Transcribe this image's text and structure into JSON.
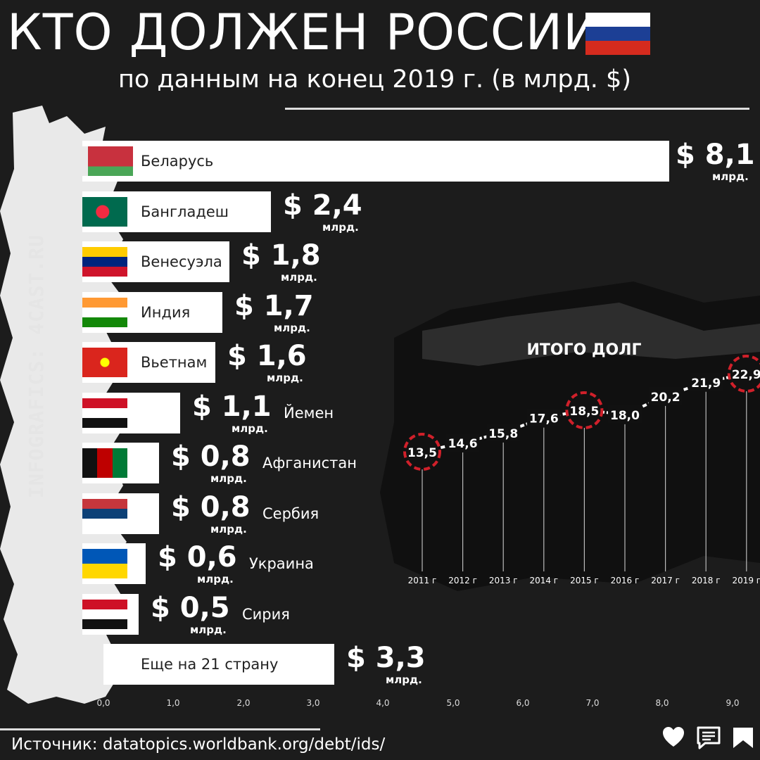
{
  "header": {
    "title": "КТО ДОЛЖЕН РОССИИ",
    "subtitle": "по данным на конец 2019 г. (в млрд. $)"
  },
  "side_text": "INFOGRAFICS: 4CAST.RU",
  "source": "Источник: datatopics.worldbank.org/debt/ids/",
  "colors": {
    "background": "#1c1c1c",
    "bar": "#ffffff",
    "marker_ring": "#d0202a",
    "line": "#ffffff"
  },
  "icons": [
    "heart-icon",
    "comment-icon",
    "bookmark-icon"
  ],
  "chart_data": [
    {
      "type": "bar",
      "orientation": "horizontal",
      "categories": [
        "Беларусь",
        "Бангладеш",
        "Венесуэла",
        "Индия",
        "Вьетнам",
        "Йемен",
        "Афганистан",
        "Сербия",
        "Украина",
        "Сирия",
        "Еще на 21 страну"
      ],
      "values": [
        8.1,
        2.4,
        1.8,
        1.7,
        1.6,
        1.1,
        0.8,
        0.8,
        0.6,
        0.5,
        3.3
      ],
      "value_labels": [
        "$ 8,1",
        "$ 2,4",
        "$ 1,8",
        "$ 1,7",
        "$ 1,6",
        "$ 1,1",
        "$ 0,8",
        "$ 0,8",
        "$ 0,6",
        "$ 0,5",
        "$ 3,3"
      ],
      "unit_label": "млрд.",
      "x_ticks": [
        "0,0",
        "1,0",
        "2,0",
        "3,0",
        "4,0",
        "5,0",
        "6,0",
        "7,0",
        "8,0",
        "9,0"
      ],
      "xlim": [
        0,
        9
      ]
    },
    {
      "type": "line",
      "title": "ИТОГО ДОЛГ",
      "x": [
        "2011 г",
        "2012 г",
        "2013 г",
        "2014 г",
        "2015 г",
        "2016 г",
        "2017 г",
        "2018 г",
        "2019 г"
      ],
      "values": [
        13.5,
        14.6,
        15.8,
        17.6,
        18.5,
        18.0,
        20.2,
        21.9,
        22.9
      ],
      "value_labels": [
        "13,5",
        "14,6",
        "15,8",
        "17,6",
        "18,5",
        "18,0",
        "20,2",
        "21,9",
        "22,9"
      ],
      "highlighted": [
        "2011 г",
        "2015 г",
        "2019 г"
      ]
    }
  ]
}
